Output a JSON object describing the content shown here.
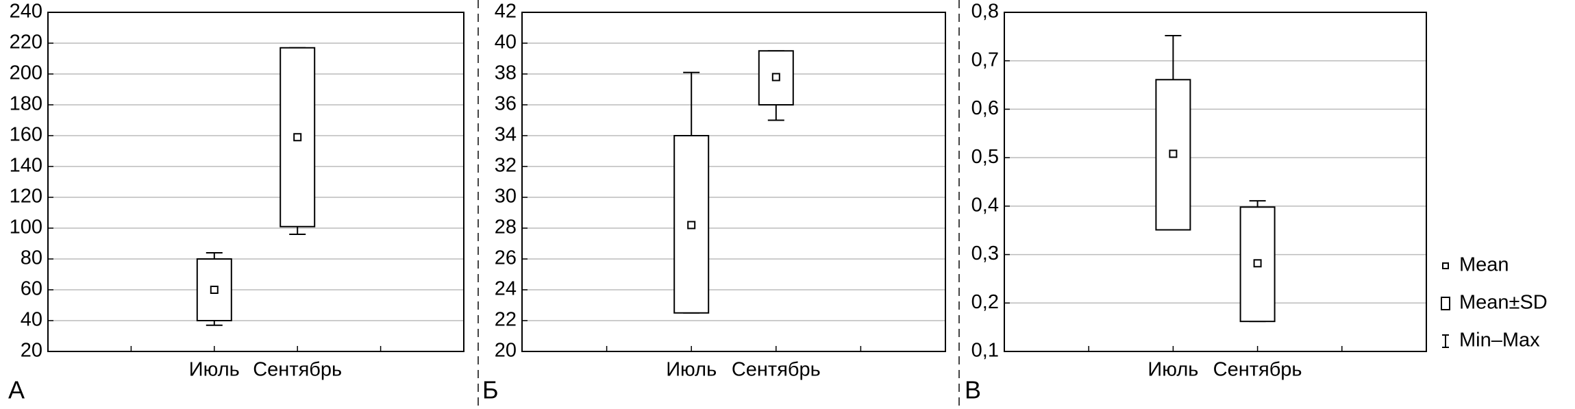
{
  "chart_data": [
    {
      "type": "box",
      "panel_label": "А",
      "categories": [
        "Июль",
        "Сентябрь"
      ],
      "mean": [
        60,
        159
      ],
      "mean_minus_sd": [
        40,
        101
      ],
      "mean_plus_sd": [
        80,
        217
      ],
      "min": [
        37,
        96
      ],
      "max": [
        84,
        217
      ],
      "ylim": [
        20,
        240
      ],
      "yticks": [
        20,
        40,
        60,
        80,
        100,
        120,
        140,
        160,
        180,
        200,
        220,
        240
      ],
      "grid": true
    },
    {
      "type": "box",
      "panel_label": "Б",
      "categories": [
        "Июль",
        "Сентябрь"
      ],
      "mean": [
        28.2,
        37.8
      ],
      "mean_minus_sd": [
        22.5,
        36
      ],
      "mean_plus_sd": [
        34,
        39.5
      ],
      "min": [
        22.5,
        35
      ],
      "max": [
        38.1,
        39.5
      ],
      "ylim": [
        20,
        42
      ],
      "yticks": [
        20,
        22,
        24,
        26,
        28,
        30,
        32,
        34,
        36,
        38,
        40,
        42
      ],
      "grid": true
    },
    {
      "type": "box",
      "panel_label": "В",
      "categories": [
        "Июль",
        "Сентябрь"
      ],
      "mean": [
        0.508,
        0.282
      ],
      "mean_minus_sd": [
        0.351,
        0.162
      ],
      "mean_plus_sd": [
        0.661,
        0.398
      ],
      "min": [
        0.351,
        0.162
      ],
      "max": [
        0.752,
        0.411
      ],
      "ylim": [
        0.1,
        0.8
      ],
      "yticks": [
        {
          "value": 0.1,
          "label": "0,1"
        },
        {
          "value": 0.2,
          "label": "0,2"
        },
        {
          "value": 0.3,
          "label": "0,3"
        },
        {
          "value": 0.4,
          "label": "0,4"
        },
        {
          "value": 0.5,
          "label": "0,5"
        },
        {
          "value": 0.6,
          "label": "0,6"
        },
        {
          "value": 0.7,
          "label": "0,7"
        },
        {
          "value": 0.8,
          "label": "0,8"
        }
      ],
      "grid": true
    }
  ],
  "legend": [
    "Mean",
    "Mean±SD",
    "Min–Max"
  ]
}
